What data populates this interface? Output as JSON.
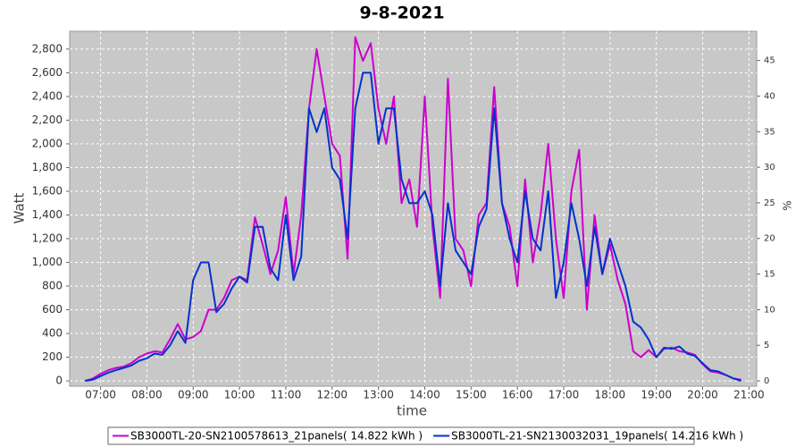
{
  "chart_data": {
    "type": "line",
    "title": "9-8-2021",
    "x_label": "time",
    "y_label": "Watt",
    "y2_label": "%",
    "x": [
      "06:40",
      "06:50",
      "07:00",
      "07:10",
      "07:20",
      "07:30",
      "07:40",
      "07:50",
      "08:00",
      "08:10",
      "08:20",
      "08:30",
      "08:40",
      "08:50",
      "09:00",
      "09:10",
      "09:20",
      "09:30",
      "09:40",
      "09:50",
      "10:00",
      "10:10",
      "10:20",
      "10:30",
      "10:40",
      "10:50",
      "11:00",
      "11:10",
      "11:20",
      "11:30",
      "11:40",
      "11:50",
      "12:00",
      "12:10",
      "12:20",
      "12:30",
      "12:40",
      "12:50",
      "13:00",
      "13:10",
      "13:20",
      "13:30",
      "13:40",
      "13:50",
      "14:00",
      "14:10",
      "14:20",
      "14:30",
      "14:40",
      "14:50",
      "15:00",
      "15:10",
      "15:20",
      "15:30",
      "15:40",
      "15:50",
      "16:00",
      "16:10",
      "16:20",
      "16:30",
      "16:40",
      "16:50",
      "17:00",
      "17:10",
      "17:20",
      "17:30",
      "17:40",
      "17:50",
      "18:00",
      "18:10",
      "18:20",
      "18:30",
      "18:40",
      "18:50",
      "19:00",
      "19:10",
      "19:20",
      "19:30",
      "19:40",
      "19:50",
      "20:00",
      "20:10",
      "20:20",
      "20:30",
      "20:40",
      "20:50"
    ],
    "series": [
      {
        "name": "SB3000TL-20-SN2100578613_21panels( 14.822 kWh )",
        "color": "#cc00cc",
        "values": [
          0,
          20,
          60,
          90,
          110,
          120,
          150,
          200,
          230,
          250,
          240,
          350,
          480,
          350,
          370,
          420,
          600,
          600,
          700,
          850,
          880,
          850,
          1380,
          1150,
          900,
          1100,
          1550,
          900,
          1400,
          2300,
          2800,
          2400,
          2000,
          1900,
          1030,
          2900,
          2700,
          2850,
          2300,
          2000,
          2400,
          1500,
          1700,
          1300,
          2400,
          1300,
          700,
          2550,
          1200,
          1100,
          800,
          1400,
          1500,
          2480,
          1500,
          1300,
          800,
          1700,
          1000,
          1400,
          2000,
          1200,
          700,
          1600,
          1950,
          600,
          1400,
          900,
          1150,
          850,
          650,
          250,
          200,
          260,
          200,
          270,
          280,
          250,
          240,
          220,
          140,
          80,
          70,
          50,
          20,
          10
        ]
      },
      {
        "name": "SB3000TL-21-SN2130032031_19panels( 14.216 kWh )",
        "color": "#0033cc",
        "values": [
          0,
          10,
          40,
          70,
          90,
          110,
          130,
          170,
          190,
          230,
          220,
          300,
          420,
          320,
          850,
          1000,
          1000,
          580,
          650,
          780,
          880,
          830,
          1300,
          1300,
          950,
          850,
          1400,
          850,
          1050,
          2300,
          2100,
          2300,
          1800,
          1700,
          1200,
          2300,
          2600,
          2600,
          2000,
          2300,
          2300,
          1700,
          1500,
          1500,
          1600,
          1400,
          800,
          1500,
          1100,
          1000,
          900,
          1300,
          1450,
          2300,
          1500,
          1200,
          1000,
          1600,
          1200,
          1100,
          1600,
          700,
          1000,
          1500,
          1200,
          800,
          1300,
          900,
          1200,
          1000,
          800,
          500,
          450,
          350,
          200,
          280,
          270,
          290,
          230,
          210,
          150,
          90,
          80,
          50,
          20,
          0
        ]
      }
    ],
    "xlim": [
      "06:20",
      "21:10"
    ],
    "xticks": [
      "07:00",
      "08:00",
      "09:00",
      "10:00",
      "11:00",
      "12:00",
      "13:00",
      "14:00",
      "15:00",
      "16:00",
      "17:00",
      "18:00",
      "19:00",
      "20:00",
      "21:00"
    ],
    "ylim": [
      -45,
      2950
    ],
    "yticks": [
      0,
      200,
      400,
      600,
      800,
      {
        "value": 1000,
        "label": "1,000"
      },
      {
        "value": 1200,
        "label": "1,200"
      },
      {
        "value": 1400,
        "label": "1,400"
      },
      {
        "value": 1600,
        "label": "1,600"
      },
      {
        "value": 1800,
        "label": "1,800"
      },
      {
        "value": 2000,
        "label": "2,000"
      },
      {
        "value": 2200,
        "label": "2,200"
      },
      {
        "value": 2400,
        "label": "2,400"
      },
      {
        "value": 2600,
        "label": "2,600"
      },
      {
        "value": 2800,
        "label": "2,800"
      }
    ],
    "y2lim": [
      -0.75,
      49.1
    ],
    "y2ticks": [
      0,
      5,
      10,
      15,
      20,
      25,
      30,
      35,
      40,
      45
    ],
    "grid": true,
    "legend": "bottom"
  }
}
